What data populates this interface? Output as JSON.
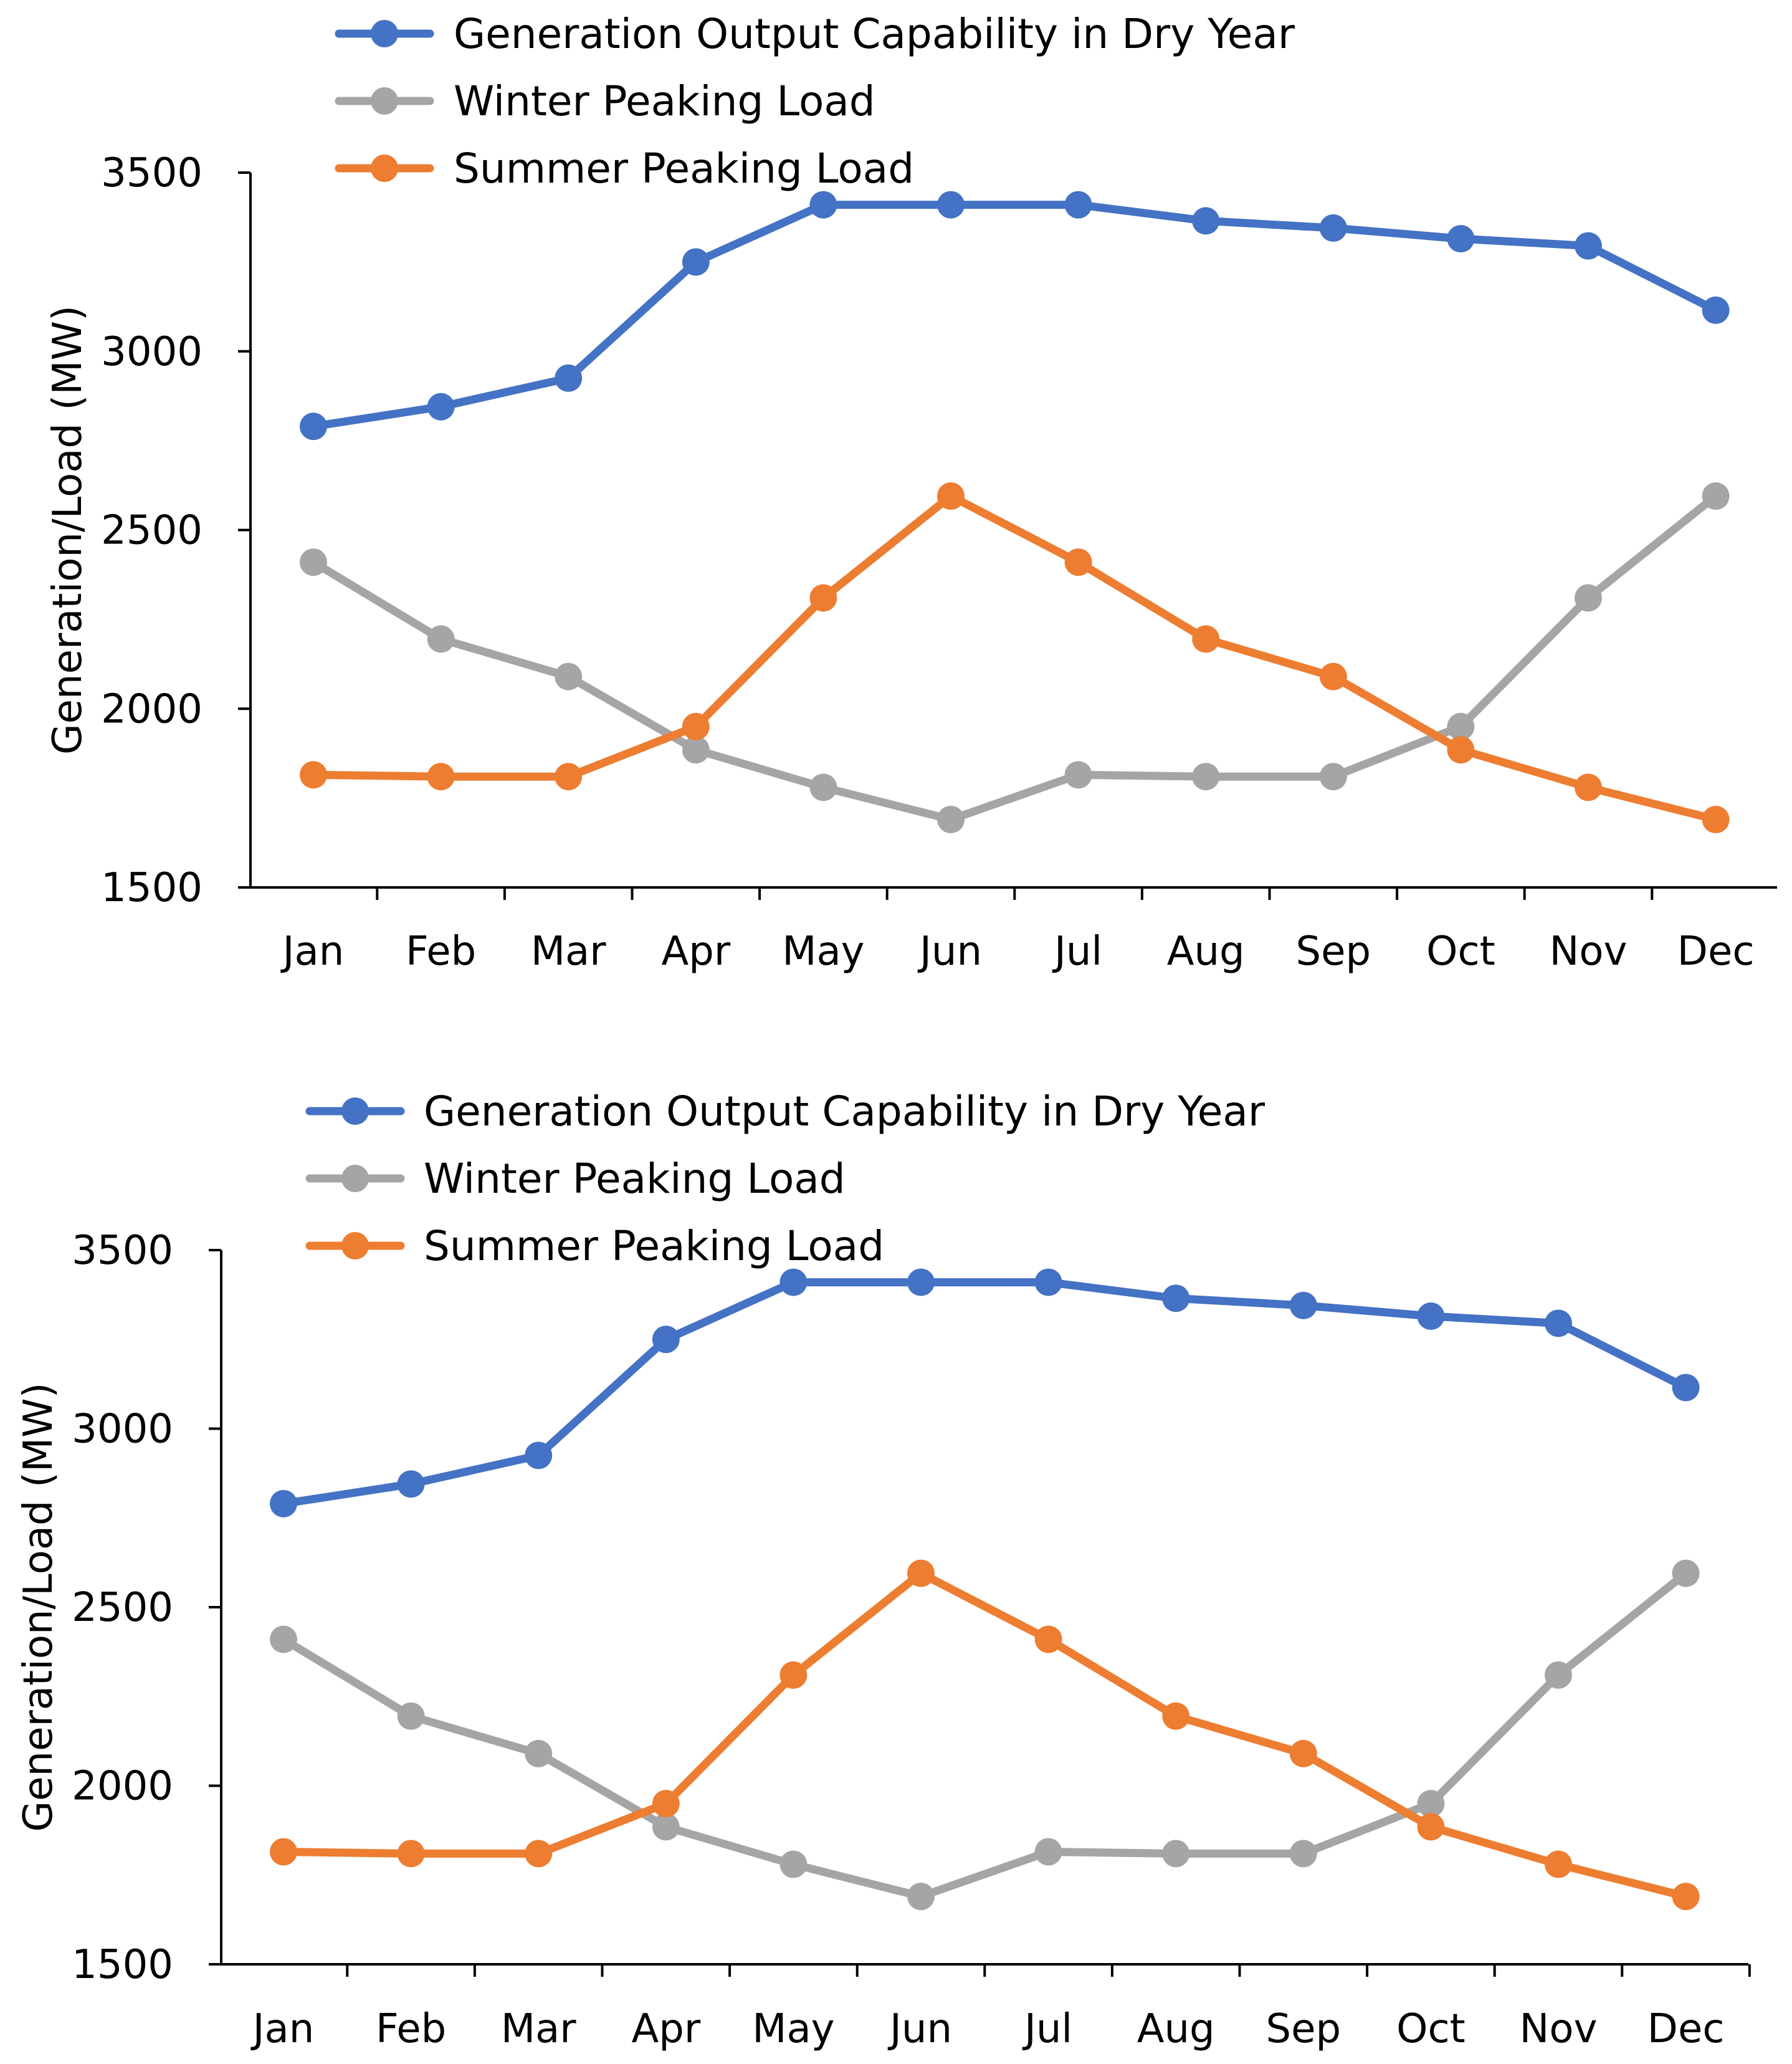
{
  "chart_data": [
    {
      "type": "line",
      "title": "",
      "xlabel": "",
      "ylabel": "Generation/Load (MW)",
      "ylim": [
        1500,
        3500
      ],
      "yticks": [
        1500,
        2000,
        2500,
        3000,
        3500
      ],
      "ytick_labels": [
        "1500",
        "2000",
        "2500",
        "3000",
        "3500"
      ],
      "grid": false,
      "legend_position": "top",
      "categories": [
        "Jan",
        "Feb",
        "Mar",
        "Apr",
        "May",
        "Jun",
        "Jul",
        "Aug",
        "Sep",
        "Oct",
        "Nov",
        "Dec"
      ],
      "series": [
        {
          "name": "Generation Output Capability in Dry Year",
          "color": "#4472C4",
          "values": [
            2790,
            2845,
            2925,
            3250,
            3410,
            3410,
            3410,
            3365,
            3345,
            3315,
            3295,
            3115
          ]
        },
        {
          "name": "Winter Peaking Load",
          "color": "#A5A5A5",
          "values": [
            2410,
            2195,
            2090,
            1885,
            1780,
            1690,
            1815,
            1810,
            1810,
            1950,
            2310,
            2595
          ]
        },
        {
          "name": "Summer Peaking Load",
          "color": "#ED7D31",
          "values": [
            1815,
            1810,
            1810,
            1950,
            2310,
            2595,
            2410,
            2195,
            2090,
            1885,
            1780,
            1690
          ]
        }
      ]
    },
    {
      "type": "line",
      "title": "",
      "xlabel": "",
      "ylabel": "Generation/Load (MW)",
      "ylim": [
        1500,
        3500
      ],
      "yticks": [
        1500,
        2000,
        2500,
        3000,
        3500
      ],
      "ytick_labels": [
        "1500",
        "2000",
        "2500",
        "3000",
        "3500"
      ],
      "grid": false,
      "legend_position": "top",
      "categories": [
        "Jan",
        "Feb",
        "Mar",
        "Apr",
        "May",
        "Jun",
        "Jul",
        "Aug",
        "Sep",
        "Oct",
        "Nov",
        "Dec"
      ],
      "series": [
        {
          "name": "Generation Output Capability in Dry Year",
          "color": "#4472C4",
          "values": [
            2790,
            2845,
            2925,
            3250,
            3410,
            3410,
            3410,
            3365,
            3345,
            3315,
            3295,
            3115
          ]
        },
        {
          "name": "Winter Peaking Load",
          "color": "#A5A5A5",
          "values": [
            2410,
            2195,
            2090,
            1885,
            1780,
            1690,
            1815,
            1810,
            1810,
            1950,
            2310,
            2595
          ]
        },
        {
          "name": "Summer Peaking Load",
          "color": "#ED7D31",
          "values": [
            1815,
            1810,
            1810,
            1950,
            2310,
            2595,
            2410,
            2195,
            2090,
            1885,
            1780,
            1690
          ]
        }
      ]
    }
  ]
}
